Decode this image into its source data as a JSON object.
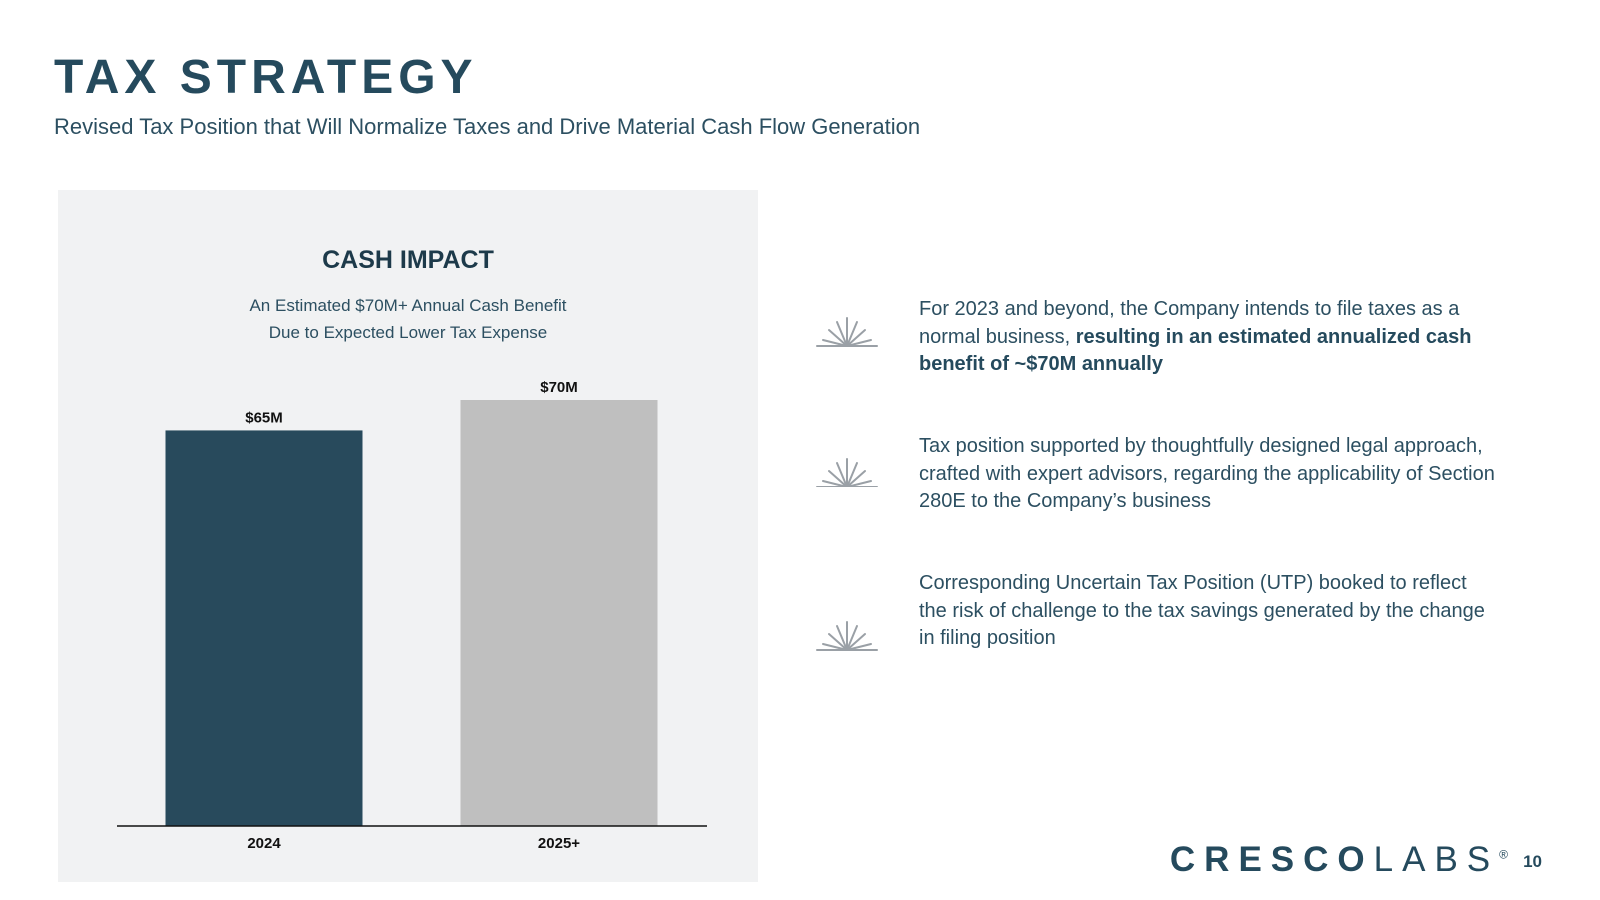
{
  "header": {
    "title": "TAX STRATEGY",
    "subtitle": "Revised Tax Position that Will Normalize Taxes and Drive Material Cash Flow Generation"
  },
  "chart_data": {
    "type": "bar",
    "title": "CASH IMPACT",
    "subtitle_lines": [
      "An Estimated $70M+ Annual Cash Benefit",
      "Due to Expected Lower Tax Expense"
    ],
    "categories": [
      "2024",
      "2025+"
    ],
    "values": [
      65,
      70
    ],
    "data_labels": [
      "$65M",
      "$70M"
    ],
    "colors": [
      "#284a5c",
      "#bfbfbf"
    ],
    "ylim": [
      0,
      70
    ],
    "xlabel": "",
    "ylabel": "",
    "grid": false,
    "legend": "none"
  },
  "bullets": [
    {
      "icon": "sunburst-icon",
      "text": "For 2023 and beyond, the Company intends to file taxes as a normal business, ",
      "bold": "resulting in an estimated annualized cash benefit of ~$70M annually"
    },
    {
      "icon": "sunburst-icon",
      "text": "Tax position supported by thoughtfully designed legal approach, crafted with expert advisors, regarding the applicability of Section 280E to the Company’s business",
      "bold": ""
    },
    {
      "icon": "sunburst-icon",
      "text": "Corresponding Uncertain Tax Position (UTP) booked to reflect the risk of challenge to the tax savings generated by the change in filing position",
      "bold": ""
    }
  ],
  "footer": {
    "logo_part1": "CRESCO",
    "logo_part2": "LABS",
    "logo_mark": "®",
    "page_number": "10"
  },
  "colors": {
    "brand": "#254a5d",
    "panel_bg": "#f1f2f3",
    "icon": "#9aa0a6"
  }
}
